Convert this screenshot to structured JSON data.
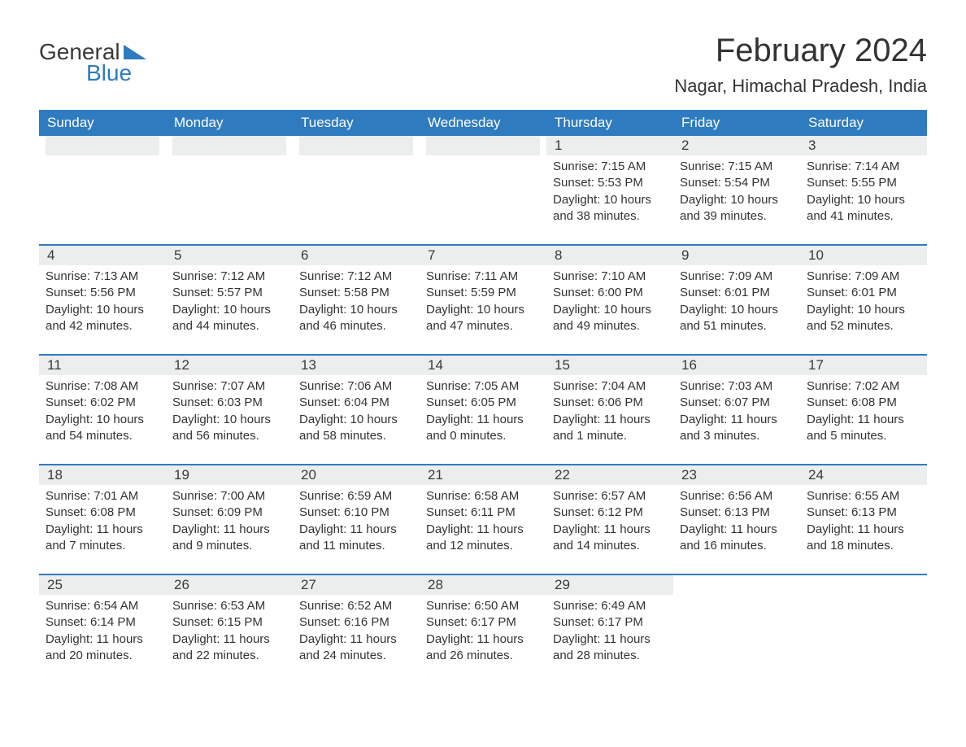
{
  "brand": {
    "general": "General",
    "blue": "Blue"
  },
  "title": "February 2024",
  "location": "Nagar, Himachal Pradesh, India",
  "colors": {
    "header_bg": "#2f7bbf",
    "header_text": "#ffffff",
    "row_strip": "#eceded",
    "text": "#333333",
    "logo_blue": "#2f7bbf"
  },
  "day_headers": [
    "Sunday",
    "Monday",
    "Tuesday",
    "Wednesday",
    "Thursday",
    "Friday",
    "Saturday"
  ],
  "weeks": [
    [
      null,
      null,
      null,
      null,
      {
        "num": "1",
        "sunrise": "Sunrise: 7:15 AM",
        "sunset": "Sunset: 5:53 PM",
        "daylight1": "Daylight: 10 hours",
        "daylight2": "and 38 minutes."
      },
      {
        "num": "2",
        "sunrise": "Sunrise: 7:15 AM",
        "sunset": "Sunset: 5:54 PM",
        "daylight1": "Daylight: 10 hours",
        "daylight2": "and 39 minutes."
      },
      {
        "num": "3",
        "sunrise": "Sunrise: 7:14 AM",
        "sunset": "Sunset: 5:55 PM",
        "daylight1": "Daylight: 10 hours",
        "daylight2": "and 41 minutes."
      }
    ],
    [
      {
        "num": "4",
        "sunrise": "Sunrise: 7:13 AM",
        "sunset": "Sunset: 5:56 PM",
        "daylight1": "Daylight: 10 hours",
        "daylight2": "and 42 minutes."
      },
      {
        "num": "5",
        "sunrise": "Sunrise: 7:12 AM",
        "sunset": "Sunset: 5:57 PM",
        "daylight1": "Daylight: 10 hours",
        "daylight2": "and 44 minutes."
      },
      {
        "num": "6",
        "sunrise": "Sunrise: 7:12 AM",
        "sunset": "Sunset: 5:58 PM",
        "daylight1": "Daylight: 10 hours",
        "daylight2": "and 46 minutes."
      },
      {
        "num": "7",
        "sunrise": "Sunrise: 7:11 AM",
        "sunset": "Sunset: 5:59 PM",
        "daylight1": "Daylight: 10 hours",
        "daylight2": "and 47 minutes."
      },
      {
        "num": "8",
        "sunrise": "Sunrise: 7:10 AM",
        "sunset": "Sunset: 6:00 PM",
        "daylight1": "Daylight: 10 hours",
        "daylight2": "and 49 minutes."
      },
      {
        "num": "9",
        "sunrise": "Sunrise: 7:09 AM",
        "sunset": "Sunset: 6:01 PM",
        "daylight1": "Daylight: 10 hours",
        "daylight2": "and 51 minutes."
      },
      {
        "num": "10",
        "sunrise": "Sunrise: 7:09 AM",
        "sunset": "Sunset: 6:01 PM",
        "daylight1": "Daylight: 10 hours",
        "daylight2": "and 52 minutes."
      }
    ],
    [
      {
        "num": "11",
        "sunrise": "Sunrise: 7:08 AM",
        "sunset": "Sunset: 6:02 PM",
        "daylight1": "Daylight: 10 hours",
        "daylight2": "and 54 minutes."
      },
      {
        "num": "12",
        "sunrise": "Sunrise: 7:07 AM",
        "sunset": "Sunset: 6:03 PM",
        "daylight1": "Daylight: 10 hours",
        "daylight2": "and 56 minutes."
      },
      {
        "num": "13",
        "sunrise": "Sunrise: 7:06 AM",
        "sunset": "Sunset: 6:04 PM",
        "daylight1": "Daylight: 10 hours",
        "daylight2": "and 58 minutes."
      },
      {
        "num": "14",
        "sunrise": "Sunrise: 7:05 AM",
        "sunset": "Sunset: 6:05 PM",
        "daylight1": "Daylight: 11 hours",
        "daylight2": "and 0 minutes."
      },
      {
        "num": "15",
        "sunrise": "Sunrise: 7:04 AM",
        "sunset": "Sunset: 6:06 PM",
        "daylight1": "Daylight: 11 hours",
        "daylight2": "and 1 minute."
      },
      {
        "num": "16",
        "sunrise": "Sunrise: 7:03 AM",
        "sunset": "Sunset: 6:07 PM",
        "daylight1": "Daylight: 11 hours",
        "daylight2": "and 3 minutes."
      },
      {
        "num": "17",
        "sunrise": "Sunrise: 7:02 AM",
        "sunset": "Sunset: 6:08 PM",
        "daylight1": "Daylight: 11 hours",
        "daylight2": "and 5 minutes."
      }
    ],
    [
      {
        "num": "18",
        "sunrise": "Sunrise: 7:01 AM",
        "sunset": "Sunset: 6:08 PM",
        "daylight1": "Daylight: 11 hours",
        "daylight2": "and 7 minutes."
      },
      {
        "num": "19",
        "sunrise": "Sunrise: 7:00 AM",
        "sunset": "Sunset: 6:09 PM",
        "daylight1": "Daylight: 11 hours",
        "daylight2": "and 9 minutes."
      },
      {
        "num": "20",
        "sunrise": "Sunrise: 6:59 AM",
        "sunset": "Sunset: 6:10 PM",
        "daylight1": "Daylight: 11 hours",
        "daylight2": "and 11 minutes."
      },
      {
        "num": "21",
        "sunrise": "Sunrise: 6:58 AM",
        "sunset": "Sunset: 6:11 PM",
        "daylight1": "Daylight: 11 hours",
        "daylight2": "and 12 minutes."
      },
      {
        "num": "22",
        "sunrise": "Sunrise: 6:57 AM",
        "sunset": "Sunset: 6:12 PM",
        "daylight1": "Daylight: 11 hours",
        "daylight2": "and 14 minutes."
      },
      {
        "num": "23",
        "sunrise": "Sunrise: 6:56 AM",
        "sunset": "Sunset: 6:13 PM",
        "daylight1": "Daylight: 11 hours",
        "daylight2": "and 16 minutes."
      },
      {
        "num": "24",
        "sunrise": "Sunrise: 6:55 AM",
        "sunset": "Sunset: 6:13 PM",
        "daylight1": "Daylight: 11 hours",
        "daylight2": "and 18 minutes."
      }
    ],
    [
      {
        "num": "25",
        "sunrise": "Sunrise: 6:54 AM",
        "sunset": "Sunset: 6:14 PM",
        "daylight1": "Daylight: 11 hours",
        "daylight2": "and 20 minutes."
      },
      {
        "num": "26",
        "sunrise": "Sunrise: 6:53 AM",
        "sunset": "Sunset: 6:15 PM",
        "daylight1": "Daylight: 11 hours",
        "daylight2": "and 22 minutes."
      },
      {
        "num": "27",
        "sunrise": "Sunrise: 6:52 AM",
        "sunset": "Sunset: 6:16 PM",
        "daylight1": "Daylight: 11 hours",
        "daylight2": "and 24 minutes."
      },
      {
        "num": "28",
        "sunrise": "Sunrise: 6:50 AM",
        "sunset": "Sunset: 6:17 PM",
        "daylight1": "Daylight: 11 hours",
        "daylight2": "and 26 minutes."
      },
      {
        "num": "29",
        "sunrise": "Sunrise: 6:49 AM",
        "sunset": "Sunset: 6:17 PM",
        "daylight1": "Daylight: 11 hours",
        "daylight2": "and 28 minutes."
      },
      null,
      null
    ]
  ]
}
